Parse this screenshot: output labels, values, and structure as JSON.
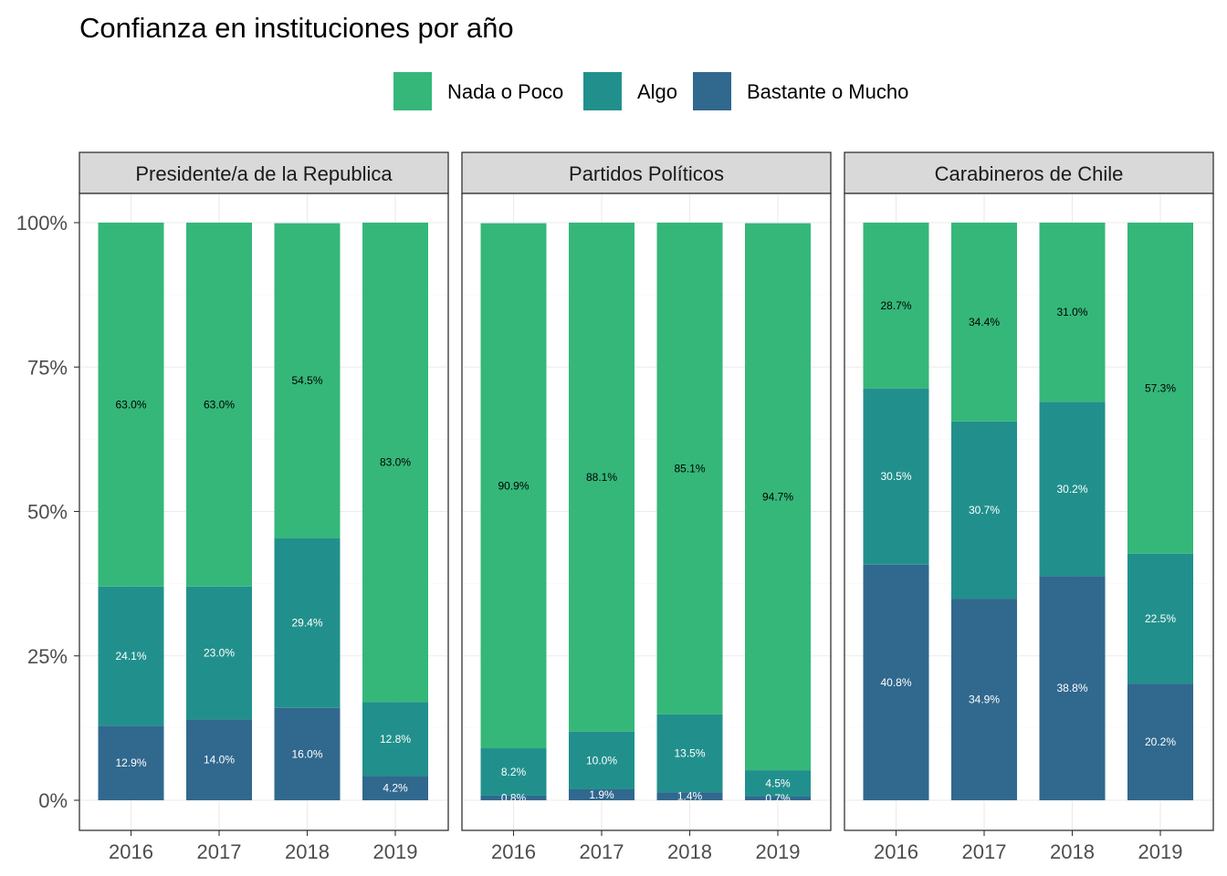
{
  "chart_data": {
    "type": "bar",
    "stacked": true,
    "title": "Confianza en instituciones por año",
    "legend": {
      "position": "top",
      "entries": [
        {
          "name": "Nada o Poco",
          "color": "#35B779"
        },
        {
          "name": "Algo",
          "color": "#21908C"
        },
        {
          "name": "Bastante o Mucho",
          "color": "#31688E"
        }
      ]
    },
    "y_ticks": [
      "0%",
      "25%",
      "50%",
      "75%",
      "100%"
    ],
    "ylim": [
      0,
      100
    ],
    "categories": [
      "2016",
      "2017",
      "2018",
      "2019"
    ],
    "grid": true,
    "panels": [
      {
        "title": "Presidente/a de la Republica",
        "series": [
          {
            "name": "Bastante o Mucho",
            "values": [
              12.9,
              14.0,
              16.0,
              4.2
            ],
            "labels": [
              "12.9%",
              "14.0%",
              "16.0%",
              "4.2%"
            ]
          },
          {
            "name": "Algo",
            "values": [
              24.1,
              23.0,
              29.4,
              12.8
            ],
            "labels": [
              "24.1%",
              "23.0%",
              "29.4%",
              "12.8%"
            ]
          },
          {
            "name": "Nada o Poco",
            "values": [
              63.0,
              63.0,
              54.5,
              83.0
            ],
            "labels": [
              "63.0%",
              "63.0%",
              "54.5%",
              "83.0%"
            ]
          }
        ]
      },
      {
        "title": "Partidos Políticos",
        "series": [
          {
            "name": "Bastante o Mucho",
            "values": [
              0.8,
              1.9,
              1.4,
              0.7
            ],
            "labels": [
              "0.8%",
              "1.9%",
              "1.4%",
              "0.7%"
            ]
          },
          {
            "name": "Algo",
            "values": [
              8.2,
              10.0,
              13.5,
              4.5
            ],
            "labels": [
              "8.2%",
              "10.0%",
              "13.5%",
              "4.5%"
            ]
          },
          {
            "name": "Nada o Poco",
            "values": [
              90.9,
              88.1,
              85.1,
              94.7
            ],
            "labels": [
              "90.9%",
              "88.1%",
              "85.1%",
              "94.7%"
            ]
          }
        ]
      },
      {
        "title": "Carabineros de Chile",
        "series": [
          {
            "name": "Bastante o Mucho",
            "values": [
              40.8,
              34.9,
              38.8,
              20.2
            ],
            "labels": [
              "40.8%",
              "34.9%",
              "38.8%",
              "20.2%"
            ]
          },
          {
            "name": "Algo",
            "values": [
              30.5,
              30.7,
              30.2,
              22.5
            ],
            "labels": [
              "30.5%",
              "30.7%",
              "30.2%",
              "22.5%"
            ]
          },
          {
            "name": "Nada o Poco",
            "values": [
              28.7,
              34.4,
              31.0,
              57.3
            ],
            "labels": [
              "28.7%",
              "34.4%",
              "31.0%",
              "57.3%"
            ]
          }
        ]
      }
    ]
  }
}
